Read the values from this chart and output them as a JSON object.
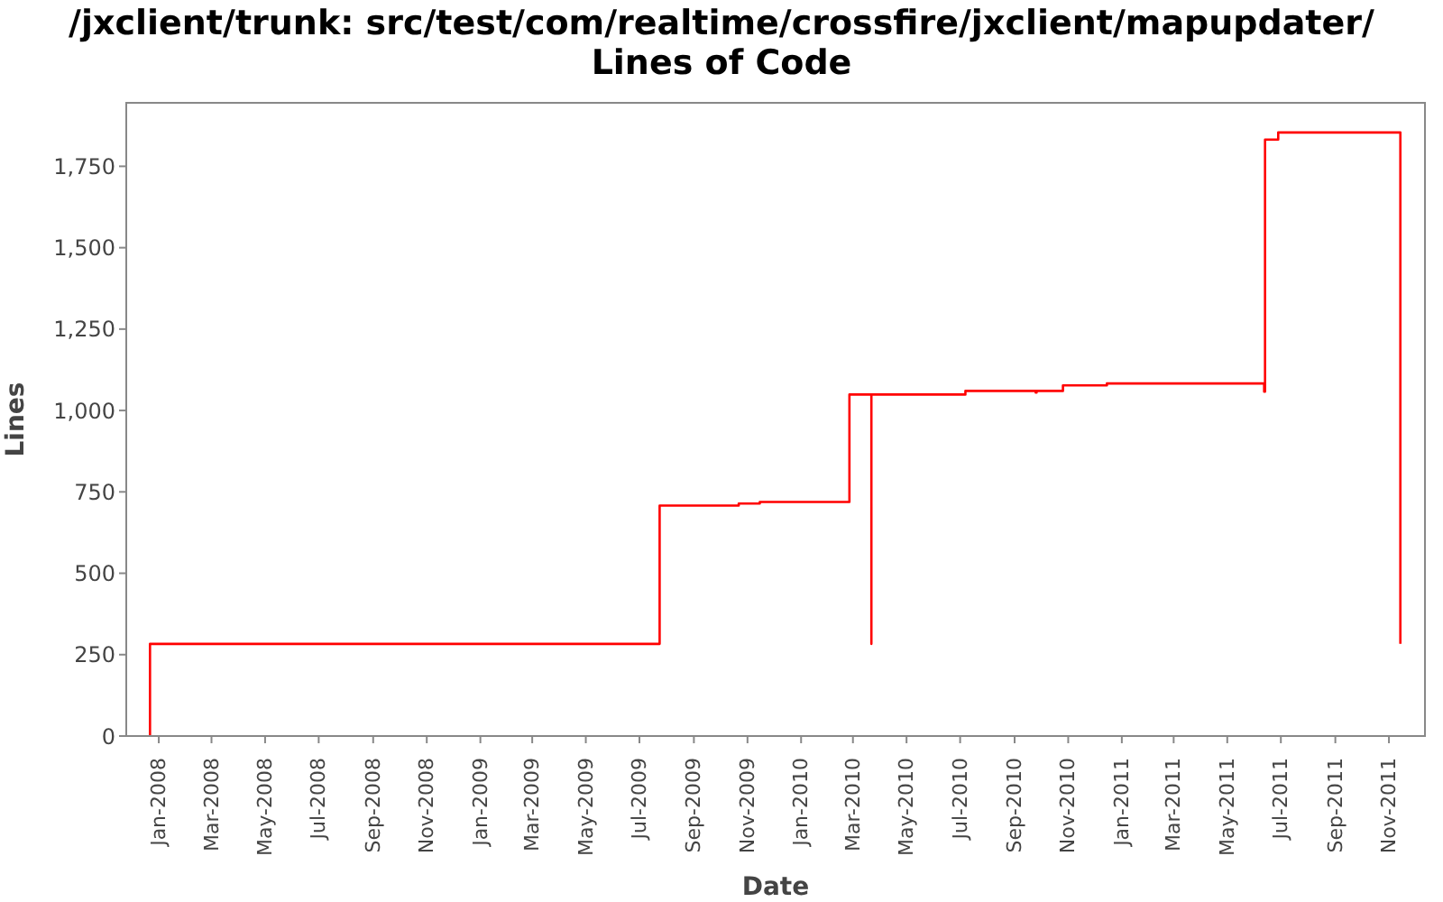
{
  "chart_data": {
    "type": "step",
    "title": "/jxclient/trunk: src/test/com/realtime/crossfire/jxclient/mapupdater/\nLines of Code",
    "xlabel": "Date",
    "ylabel": "Lines",
    "x": [
      "2007-12-22",
      "2007-12-22",
      "2009-07-24",
      "2009-10-22",
      "2009-11-15",
      "2010-02-25",
      "2010-03-22",
      "2010-03-22",
      "2010-07-07",
      "2010-09-25",
      "2010-09-26",
      "2010-10-26",
      "2010-12-15",
      "2011-06-12",
      "2011-06-13",
      "2011-06-28",
      "2011-11-14"
    ],
    "series": [
      {
        "color": "#ff0000",
        "values": [
          0,
          283,
          708,
          714,
          719,
          1049,
          283,
          1049,
          1060,
          1055,
          1060,
          1077,
          1083,
          1058,
          1832,
          1854,
          283
        ]
      }
    ],
    "xlim": [
      "2007-11-25",
      "2011-12-12"
    ],
    "xticks": [
      {
        "value": "2008-01-01",
        "label": "Jan-2008"
      },
      {
        "value": "2008-03-01",
        "label": "Mar-2008"
      },
      {
        "value": "2008-05-01",
        "label": "May-2008"
      },
      {
        "value": "2008-07-01",
        "label": "Jul-2008"
      },
      {
        "value": "2008-09-01",
        "label": "Sep-2008"
      },
      {
        "value": "2008-11-01",
        "label": "Nov-2008"
      },
      {
        "value": "2009-01-01",
        "label": "Jan-2009"
      },
      {
        "value": "2009-03-01",
        "label": "Mar-2009"
      },
      {
        "value": "2009-05-01",
        "label": "May-2009"
      },
      {
        "value": "2009-07-01",
        "label": "Jul-2009"
      },
      {
        "value": "2009-09-01",
        "label": "Sep-2009"
      },
      {
        "value": "2009-11-01",
        "label": "Nov-2009"
      },
      {
        "value": "2010-01-01",
        "label": "Jan-2010"
      },
      {
        "value": "2010-03-01",
        "label": "Mar-2010"
      },
      {
        "value": "2010-05-01",
        "label": "May-2010"
      },
      {
        "value": "2010-07-01",
        "label": "Jul-2010"
      },
      {
        "value": "2010-09-01",
        "label": "Sep-2010"
      },
      {
        "value": "2010-11-01",
        "label": "Nov-2010"
      },
      {
        "value": "2011-01-01",
        "label": "Jan-2011"
      },
      {
        "value": "2011-03-01",
        "label": "Mar-2011"
      },
      {
        "value": "2011-05-01",
        "label": "May-2011"
      },
      {
        "value": "2011-07-01",
        "label": "Jul-2011"
      },
      {
        "value": "2011-09-01",
        "label": "Sep-2011"
      },
      {
        "value": "2011-11-01",
        "label": "Nov-2011"
      }
    ],
    "ylim": [
      0,
      1945
    ],
    "yticks": [
      0,
      250,
      500,
      750,
      {
        "value": 1000,
        "label": "1,000"
      },
      {
        "value": 1250,
        "label": "1,250"
      },
      {
        "value": 1500,
        "label": "1,500"
      },
      {
        "value": 1750,
        "label": "1,750"
      }
    ],
    "grid": false,
    "legend": false,
    "marker": "none",
    "line_style": "solid"
  }
}
